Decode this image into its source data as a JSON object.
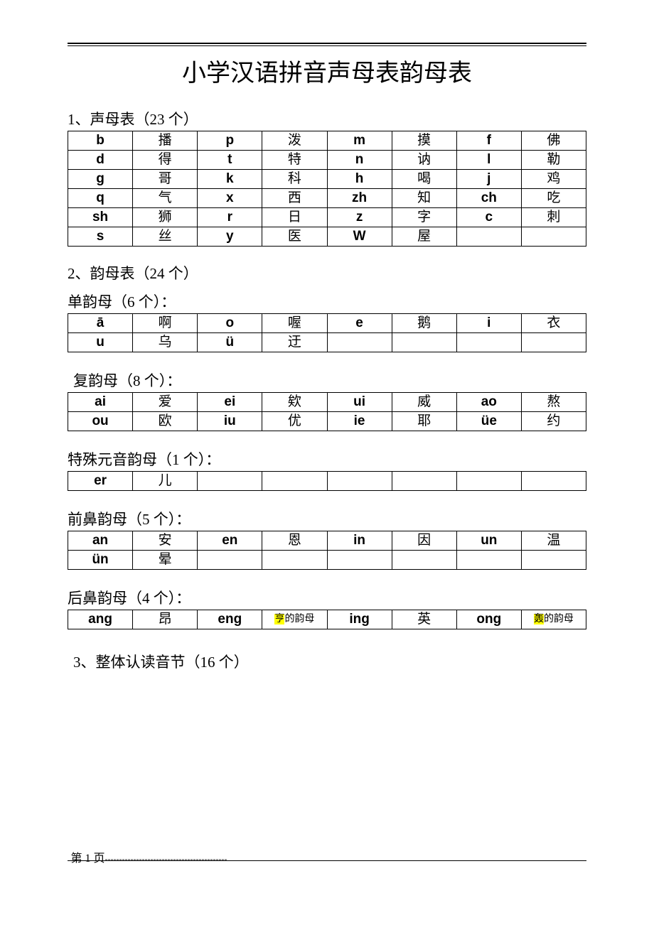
{
  "header_dashes": "---------------------------------------------",
  "title": "小学汉语拼音声母表韵母表",
  "section1": {
    "heading": "1、声母表（23 个）",
    "rows": [
      [
        "b",
        "播",
        "p",
        "泼",
        "m",
        "摸",
        "f",
        "佛"
      ],
      [
        "d",
        "得",
        "t",
        "特",
        "n",
        "讷",
        "l",
        "勒"
      ],
      [
        "g",
        "哥",
        "k",
        "科",
        "h",
        "喝",
        "j",
        "鸡"
      ],
      [
        "q",
        "气",
        "x",
        "西",
        "zh",
        "知",
        "ch",
        "吃"
      ],
      [
        "sh",
        "狮",
        "r",
        "日",
        "z",
        "字",
        "c",
        "刺"
      ],
      [
        "s",
        "丝",
        "y",
        "医",
        "W",
        "屋",
        "",
        ""
      ]
    ]
  },
  "section2": {
    "heading": "2、韵母表（24 个）",
    "single": {
      "heading": "单韵母（6 个）：",
      "rows": [
        [
          "ā",
          "啊",
          "o",
          "喔",
          "e",
          "鹅",
          "i",
          "衣"
        ],
        [
          "u",
          "乌",
          "ü",
          "迂",
          "",
          "",
          "",
          ""
        ]
      ]
    },
    "compound": {
      "heading": "复韵母（8 个）：",
      "rows": [
        [
          "ai",
          "爱",
          "ei",
          "欸",
          "ui",
          "威",
          "ao",
          "熬"
        ],
        [
          "ou",
          "欧",
          "iu",
          "优",
          "ie",
          "耶",
          "üe",
          "约"
        ]
      ]
    },
    "special": {
      "heading": "特殊元音韵母（1 个）：",
      "rows": [
        [
          "er",
          "儿",
          "",
          "",
          "",
          "",
          "",
          ""
        ]
      ]
    },
    "front_nasal": {
      "heading": "前鼻韵母（5 个）：",
      "rows": [
        [
          "an",
          "安",
          "en",
          "恩",
          "in",
          "因",
          "un",
          "温"
        ],
        [
          "ün",
          "晕",
          "",
          "",
          "",
          "",
          "",
          ""
        ]
      ]
    },
    "back_nasal": {
      "heading": "后鼻韵母（4 个）：",
      "rows": [
        [
          "ang",
          "昂",
          "eng",
          {
            "hl": "亨",
            "suffix": "的韵母"
          },
          "ing",
          "英",
          "ong",
          {
            "hl": "轰",
            "suffix": "的韵母"
          }
        ]
      ]
    }
  },
  "section3": {
    "heading": "3、整体认读音节（16 个）"
  },
  "footer": {
    "page_label": "第 1 页",
    "dashes": "-------------------------------------------"
  }
}
